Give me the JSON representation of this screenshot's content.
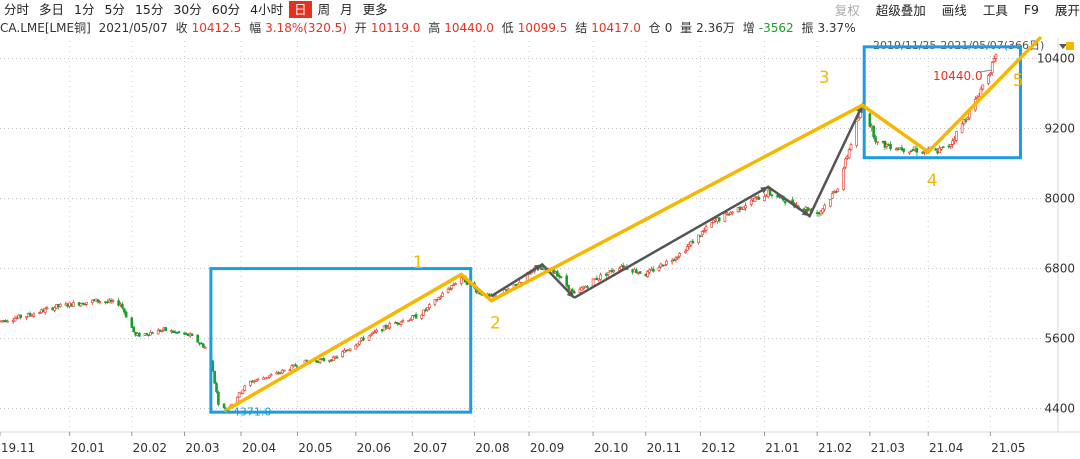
{
  "toolbar": {
    "timeframes": [
      "分时",
      "多日",
      "1分",
      "5分",
      "15分",
      "30分",
      "60分",
      "4小时",
      "日",
      "周",
      "月",
      "更多"
    ],
    "active": "日",
    "right": {
      "restore": "复权",
      "overlay": "超级叠加",
      "draw": "画线",
      "tools": "工具",
      "f9": "F9",
      "expand": "展开"
    }
  },
  "info": {
    "symbol": "CA.LME[LME铜]",
    "date": "2021/05/07",
    "close_label": "收",
    "close": "10412.5",
    "chg_label": "幅",
    "chg": "3.18%(320.5)",
    "open_label": "开",
    "open": "10119.0",
    "high_label": "高",
    "high": "10440.0",
    "low_label": "低",
    "low": "10099.5",
    "settle_label": "结",
    "settle": "10417.0",
    "oi_label": "仓",
    "oi": "0",
    "vol_label": "量",
    "vol": "2.36万",
    "inc_label": "增",
    "inc": "-3562",
    "amp_label": "振",
    "amp": "3.37%"
  },
  "range_text": "2019/11/25-2021/05/07(366日)",
  "colors": {
    "up": "#e8301f",
    "down": "#1a9e2b",
    "wave": "#f5b800",
    "box": "#1e9be6",
    "subwave": "#555555"
  },
  "chart_data": {
    "type": "candlestick",
    "ylim": [
      4000,
      10700
    ],
    "yticks": [
      4400,
      5600,
      6800,
      8000,
      9200,
      10400
    ],
    "xlabels": [
      "19.11",
      "20.01",
      "20.02",
      "20.03",
      "20.04",
      "20.05",
      "20.06",
      "20.07",
      "20.08",
      "20.09",
      "20.10",
      "20.11",
      "20.12",
      "21.01",
      "21.02",
      "21.03",
      "21.04",
      "21.05"
    ],
    "trend_anchors": [
      [
        "2019-11-25",
        5900
      ],
      [
        "2019-12-10",
        6000
      ],
      [
        "2019-12-25",
        6150
      ],
      [
        "2020-01-15",
        6250
      ],
      [
        "2020-01-28",
        6200
      ],
      [
        "2020-02-05",
        5650
      ],
      [
        "2020-02-20",
        5750
      ],
      [
        "2020-03-05",
        5650
      ],
      [
        "2020-03-15",
        5400
      ],
      [
        "2020-03-20",
        4500
      ],
      [
        "2020-03-24",
        4371
      ],
      [
        "2020-04-05",
        4850
      ],
      [
        "2020-04-20",
        5000
      ],
      [
        "2020-05-05",
        5200
      ],
      [
        "2020-05-20",
        5250
      ],
      [
        "2020-06-05",
        5600
      ],
      [
        "2020-06-20",
        5850
      ],
      [
        "2020-07-05",
        6000
      ],
      [
        "2020-07-20",
        6450
      ],
      [
        "2020-07-27",
        6650
      ],
      [
        "2020-08-05",
        6400
      ],
      [
        "2020-08-12",
        6300
      ],
      [
        "2020-08-25",
        6500
      ],
      [
        "2020-09-03",
        6800
      ],
      [
        "2020-09-15",
        6750
      ],
      [
        "2020-09-25",
        6350
      ],
      [
        "2020-10-05",
        6600
      ],
      [
        "2020-10-20",
        6850
      ],
      [
        "2020-11-02",
        6700
      ],
      [
        "2020-11-20",
        7050
      ],
      [
        "2020-12-08",
        7600
      ],
      [
        "2020-12-22",
        7850
      ],
      [
        "2021-01-06",
        8100
      ],
      [
        "2021-01-20",
        7900
      ],
      [
        "2021-02-02",
        7750
      ],
      [
        "2021-02-12",
        8200
      ],
      [
        "2021-02-25",
        9600
      ],
      [
        "2021-03-05",
        8950
      ],
      [
        "2021-03-20",
        8850
      ],
      [
        "2021-04-05",
        8800
      ],
      [
        "2021-04-12",
        8900
      ],
      [
        "2021-04-25",
        9600
      ],
      [
        "2021-05-07",
        10412
      ]
    ],
    "waves": [
      {
        "label": "1",
        "from": [
          "2020-03-24",
          4371
        ],
        "to": [
          "2020-07-27",
          6700
        ]
      },
      {
        "label": "2",
        "from": [
          "2020-07-27",
          6700
        ],
        "to": [
          "2020-08-12",
          6250
        ]
      },
      {
        "label": "3",
        "from": [
          "2020-08-12",
          6250
        ],
        "to": [
          "2021-02-25",
          9600
        ]
      },
      {
        "label": "4",
        "from": [
          "2021-02-25",
          9600
        ],
        "to": [
          "2021-04-01",
          8800
        ]
      },
      {
        "label": "5",
        "from": [
          "2021-04-01",
          8800
        ],
        "to": [
          "2021-05-07",
          10750
        ]
      }
    ],
    "subwaves": [
      [
        [
          "2020-08-12",
          6330
        ],
        [
          "2020-09-08",
          6870
        ],
        [
          "2020-09-25",
          6300
        ]
      ],
      [
        [
          "2020-09-25",
          6300
        ],
        [
          "2021-01-06",
          8200
        ],
        [
          "2021-01-28",
          7700
        ],
        [
          "2021-02-25",
          9600
        ]
      ]
    ],
    "boxes": [
      {
        "from": "2020-03-16",
        "to": "2020-08-01",
        "ymin": 4340,
        "ymax": 6800
      },
      {
        "from": "2021-02-26",
        "to": "2021-05-20",
        "ymin": 8700,
        "ymax": 10600
      }
    ],
    "annotations": {
      "low": {
        "date": "2020-03-24",
        "value": 4371,
        "text": "4371.0"
      },
      "high": {
        "date": "2021-05-07",
        "value": 10440,
        "text": "10440.0"
      }
    }
  }
}
